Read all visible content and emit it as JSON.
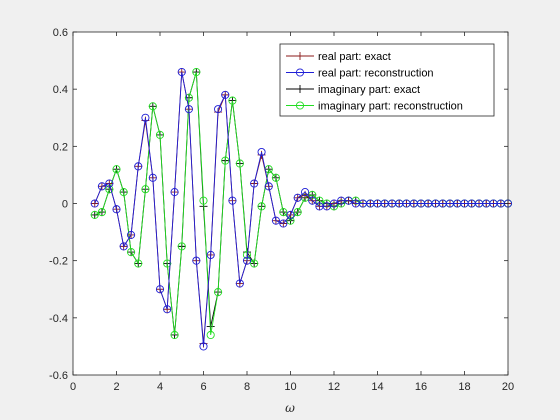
{
  "chart_data": {
    "type": "line",
    "title": "",
    "xlabel": "ω",
    "ylabel": "",
    "xlim": [
      0,
      20
    ],
    "ylim": [
      -0.6,
      0.6
    ],
    "xticks": [
      "0",
      "2",
      "4",
      "6",
      "8",
      "10",
      "12",
      "14",
      "16",
      "18",
      "20"
    ],
    "yticks": [
      "-0.6",
      "-0.4",
      "-0.2",
      "0",
      "0.2",
      "0.4",
      "0.6"
    ],
    "grid": false,
    "legend_position": "top-right",
    "x": [
      1.0,
      1.33,
      1.67,
      2.0,
      2.33,
      2.67,
      3.0,
      3.33,
      3.67,
      4.0,
      4.33,
      4.67,
      5.0,
      5.33,
      5.67,
      6.0,
      6.33,
      6.67,
      7.0,
      7.33,
      7.67,
      8.0,
      8.33,
      8.67,
      9.0,
      9.33,
      9.67,
      10.0,
      10.33,
      10.67,
      11.0,
      11.33,
      11.67,
      12.0,
      12.33,
      12.67,
      13.0,
      13.33,
      13.67,
      14.0,
      14.33,
      14.67,
      15.0,
      15.33,
      15.67,
      16.0,
      16.33,
      16.67,
      17.0,
      17.33,
      17.67,
      18.0,
      18.33,
      18.67,
      19.0,
      19.33,
      19.67,
      20.0
    ],
    "series": [
      {
        "name": "real part: exact",
        "color": "#8b1a1a",
        "marker": "plus",
        "values": [
          0.0,
          0.06,
          0.07,
          -0.02,
          -0.15,
          -0.11,
          0.13,
          0.29,
          0.09,
          -0.3,
          -0.37,
          0.04,
          0.46,
          0.33,
          -0.2,
          -0.49,
          -0.18,
          0.32,
          0.38,
          0.01,
          -0.28,
          -0.2,
          0.07,
          0.17,
          0.06,
          -0.06,
          -0.07,
          -0.04,
          0.02,
          0.03,
          0.01,
          -0.01,
          -0.01,
          0.0,
          0.01,
          0.01,
          0.0,
          0.0,
          0.0,
          0.0,
          0.0,
          0.0,
          0.0,
          0.0,
          0.0,
          0.0,
          0.0,
          0.0,
          0.0,
          0.0,
          0.0,
          0.0,
          0.0,
          0.0,
          0.0,
          0.0,
          0.0,
          0.0
        ]
      },
      {
        "name": "real part: reconstruction",
        "color": "#1f1fd6",
        "marker": "circle",
        "values": [
          0.0,
          0.06,
          0.07,
          -0.02,
          -0.15,
          -0.11,
          0.13,
          0.3,
          0.09,
          -0.3,
          -0.37,
          0.04,
          0.46,
          0.33,
          -0.2,
          -0.5,
          -0.18,
          0.33,
          0.38,
          0.01,
          -0.28,
          -0.2,
          0.07,
          0.18,
          0.06,
          -0.06,
          -0.07,
          -0.04,
          0.02,
          0.04,
          0.01,
          -0.01,
          -0.01,
          0.0,
          0.01,
          0.01,
          0.0,
          0.0,
          0.0,
          0.0,
          0.0,
          0.0,
          0.0,
          0.0,
          0.0,
          0.0,
          0.0,
          0.0,
          0.0,
          0.0,
          0.0,
          0.0,
          0.0,
          0.0,
          0.0,
          0.0,
          0.0,
          0.0
        ]
      },
      {
        "name": "imaginary part: exact",
        "color": "#000000",
        "marker": "plus",
        "values": [
          -0.04,
          -0.03,
          0.05,
          0.12,
          0.04,
          -0.17,
          -0.21,
          0.05,
          0.34,
          0.24,
          -0.21,
          -0.46,
          -0.15,
          0.37,
          0.46,
          -0.01,
          -0.43,
          -0.31,
          0.15,
          0.36,
          0.14,
          -0.17,
          -0.21,
          -0.01,
          0.12,
          0.09,
          -0.03,
          -0.06,
          -0.03,
          0.02,
          0.03,
          0.01,
          0.0,
          -0.01,
          0.0,
          0.01,
          0.01,
          0.0,
          0.0,
          0.0,
          0.0,
          0.0,
          0.0,
          0.0,
          0.0,
          0.0,
          0.0,
          0.0,
          0.0,
          0.0,
          0.0,
          0.0,
          0.0,
          0.0,
          0.0,
          0.0,
          0.0,
          0.0
        ]
      },
      {
        "name": "imaginary part: reconstruction",
        "color": "#22dd22",
        "marker": "circle",
        "values": [
          -0.04,
          -0.03,
          0.05,
          0.12,
          0.04,
          -0.17,
          -0.21,
          0.05,
          0.34,
          0.24,
          -0.21,
          -0.46,
          -0.15,
          0.37,
          0.46,
          0.01,
          -0.46,
          -0.31,
          0.15,
          0.36,
          0.14,
          -0.18,
          -0.21,
          -0.01,
          0.12,
          0.09,
          -0.03,
          -0.06,
          -0.03,
          0.02,
          0.03,
          0.01,
          0.0,
          -0.01,
          0.0,
          0.01,
          0.01,
          0.0,
          0.0,
          0.0,
          0.0,
          0.0,
          0.0,
          0.0,
          0.0,
          0.0,
          0.0,
          0.0,
          0.0,
          0.0,
          0.0,
          0.0,
          0.0,
          0.0,
          0.0,
          0.0,
          0.0,
          0.0
        ]
      }
    ]
  }
}
